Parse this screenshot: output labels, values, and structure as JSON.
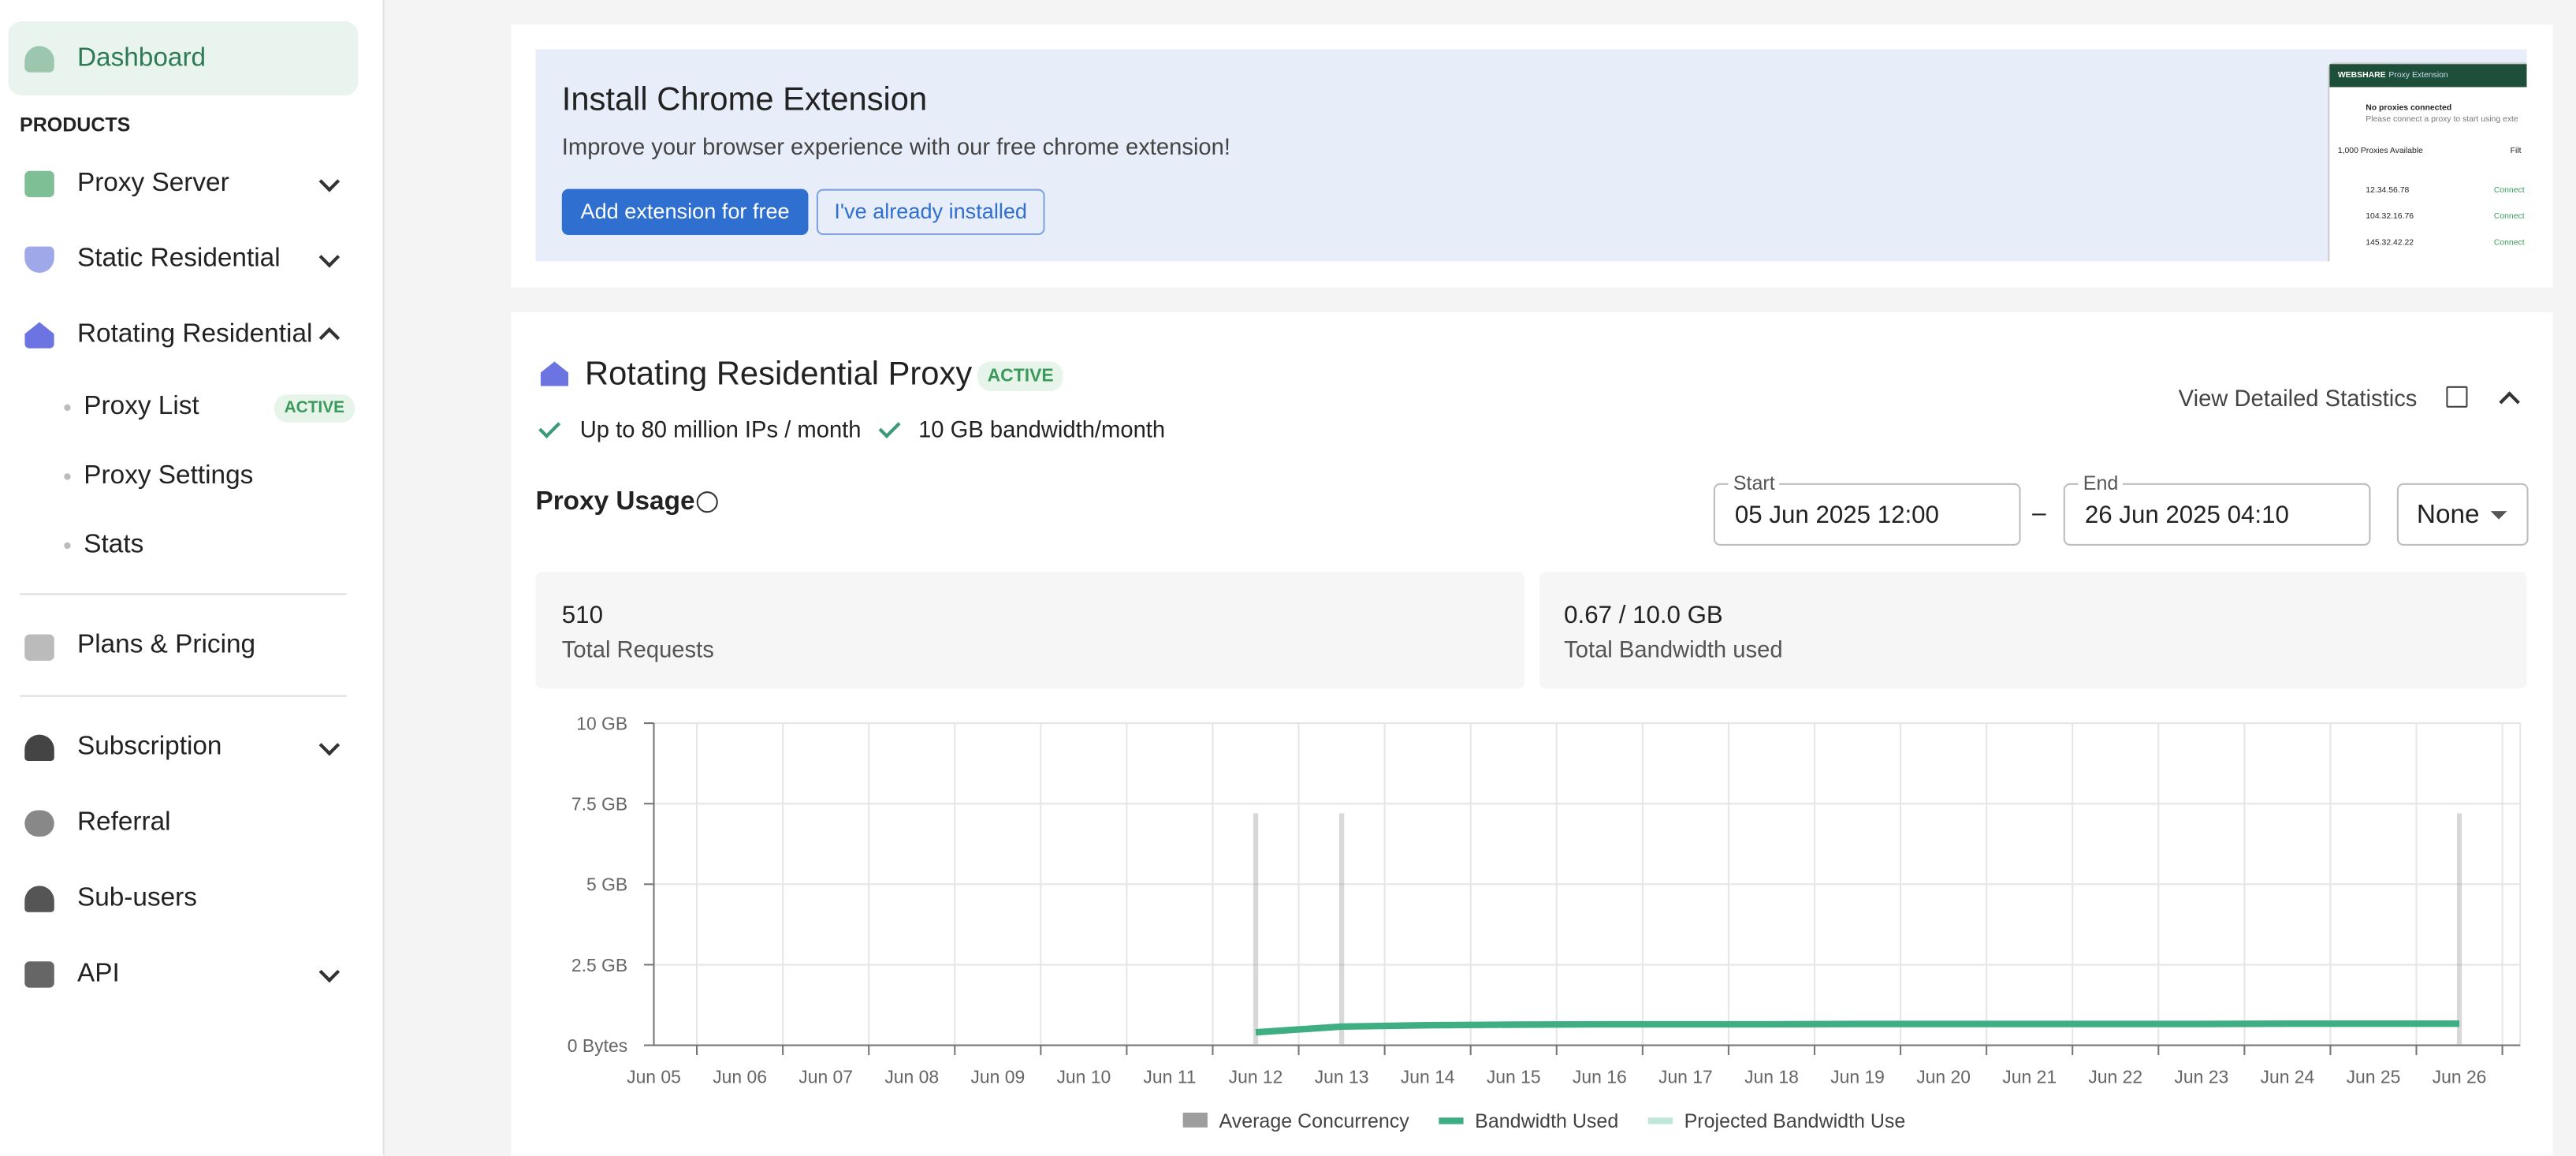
{
  "sidebar": {
    "dashboard": "Dashboard",
    "section": "PRODUCTS",
    "items": [
      "Proxy Server",
      "Static Residential",
      "Rotating Residential"
    ],
    "sub_items": [
      "Proxy List",
      "Proxy Settings",
      "Stats"
    ],
    "sub_badge": "ACTIVE",
    "more_items": [
      "Plans & Pricing"
    ],
    "account_items": [
      "Subscription",
      "Referral",
      "Sub-users",
      "API"
    ]
  },
  "banner": {
    "title": "Install Chrome Extension",
    "text": "Improve your browser experience with our free chrome extension!",
    "primary_button": "Add extension for free",
    "secondary_button": "I've already installed",
    "preview": {
      "brand": "WEBSHARE",
      "name": "Proxy Extension",
      "status": "No proxies connected",
      "hint": "Please connect a proxy to start using exte",
      "count": "1,000 Proxies Available",
      "filter": "Filt",
      "ips": [
        "12.34.56.78",
        "104.32.16.76",
        "145.32.42.22"
      ],
      "action": "Connect"
    }
  },
  "proxy": {
    "title": "Rotating Residential Proxy",
    "badge": "ACTIVE",
    "features": [
      "Up to 80 million IPs / month",
      "10 GB bandwidth/month"
    ],
    "stats_link": "View Detailed Statistics",
    "usage_title": "Proxy Usage",
    "start_label": "Start",
    "start_value": "05 Jun 2025 12:00",
    "separator": "–",
    "end_label": "End",
    "end_value": "26 Jun 2025 04:10",
    "group": "None",
    "stats": [
      {
        "value": "510",
        "label": "Total Requests"
      },
      {
        "value": "0.67 / 10.0 GB",
        "label": "Total Bandwidth used"
      }
    ]
  },
  "chart_data": {
    "type": "line",
    "categories": [
      "Jun 05",
      "Jun 06",
      "Jun 07",
      "Jun 08",
      "Jun 09",
      "Jun 10",
      "Jun 11",
      "Jun 12",
      "Jun 13",
      "Jun 14",
      "Jun 15",
      "Jun 16",
      "Jun 17",
      "Jun 18",
      "Jun 19",
      "Jun 20",
      "Jun 21",
      "Jun 22",
      "Jun 23",
      "Jun 24",
      "Jun 25",
      "Jun 26"
    ],
    "ylim": [
      0,
      10
    ],
    "yticks": [
      {
        "value": 0,
        "label": "0 Bytes"
      },
      {
        "value": 2.5,
        "label": "2.5 GB"
      },
      {
        "value": 5,
        "label": "5 GB"
      },
      {
        "value": 7.5,
        "label": "7.5 GB"
      },
      {
        "value": 10,
        "label": "10 GB"
      }
    ],
    "grid": true,
    "series": [
      {
        "name": "Average Concurrency",
        "color": "#9e9e9e",
        "kind": "bar",
        "values": [
          null,
          null,
          null,
          null,
          null,
          null,
          null,
          7.2,
          7.2,
          null,
          null,
          null,
          null,
          null,
          null,
          null,
          null,
          null,
          null,
          null,
          null,
          7.2
        ]
      },
      {
        "name": "Bandwidth Used",
        "color": "#3fae83",
        "kind": "line",
        "values": [
          null,
          null,
          null,
          null,
          null,
          null,
          null,
          0.4,
          0.58,
          0.62,
          0.64,
          0.65,
          0.65,
          0.65,
          0.66,
          0.66,
          0.66,
          0.66,
          0.66,
          0.67,
          0.67,
          0.67
        ]
      },
      {
        "name": "Projected Bandwidth Use",
        "color": "#bfe6da",
        "kind": "line",
        "values": [
          null,
          null,
          null,
          null,
          null,
          null,
          null,
          null,
          null,
          null,
          null,
          null,
          null,
          null,
          null,
          null,
          null,
          null,
          null,
          null,
          null,
          null
        ]
      }
    ]
  }
}
